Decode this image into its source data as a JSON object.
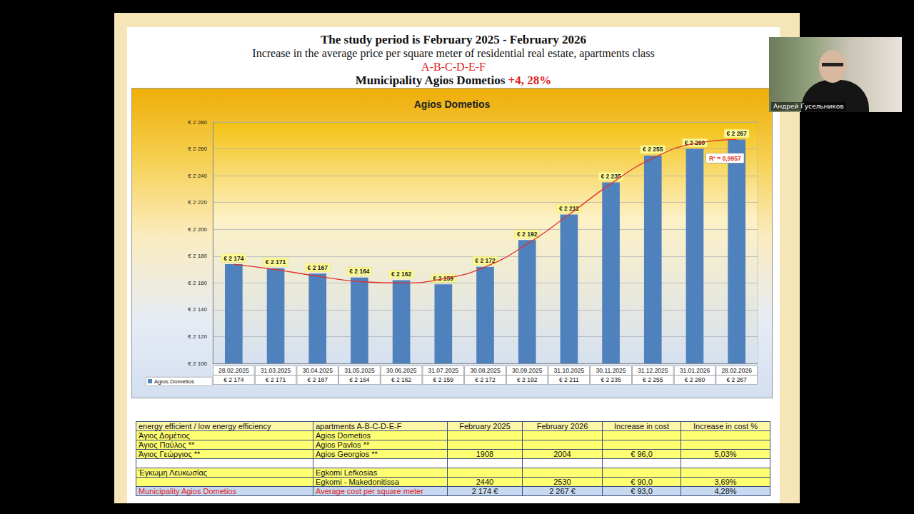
{
  "header": {
    "line1": "The study period is February 2025 - February 2026",
    "line2": "Increase in the average price per square meter of residential real estate, apartments class",
    "line3": "A-B-C-D-E-F",
    "municipality": "Municipality Agios Dometios",
    "change": "+4, 28%"
  },
  "chart_data": {
    "type": "bar",
    "title": "Agios Dometios",
    "categories": [
      "28.02.2025",
      "31.03.2025",
      "30.04.2025",
      "31.05.2025",
      "30.06.2025",
      "31.07.2025",
      "30.08.2025",
      "30.09.2025",
      "31.10.2025",
      "30.11.2025",
      "31.12.2025",
      "31.01.2026",
      "28.02.2026"
    ],
    "series": [
      {
        "name": "Agios Dometios",
        "type": "bar",
        "color": "#4f81bd",
        "values": [
          2174,
          2171,
          2167,
          2164,
          2162,
          2159,
          2172,
          2192,
          2211,
          2235,
          2255,
          2260,
          2267
        ],
        "value_labels": [
          "€ 2 174",
          "€ 2 171",
          "€ 2 167",
          "€ 2 164",
          "€ 2 162",
          "€ 2 159",
          "€ 2 172",
          "€ 2 192",
          "€ 2 211",
          "€ 2 235",
          "€ 2 255",
          "€ 2 260",
          "€ 2 267"
        ]
      },
      {
        "type": "line",
        "color": "#e0302a",
        "line_style": "solid",
        "marker": "none",
        "values": [
          2174,
          2170,
          2165,
          2161,
          2160,
          2163,
          2172,
          2189,
          2211,
          2234,
          2253,
          2264,
          2267
        ]
      }
    ],
    "annotations": [
      {
        "text": "R² = 0,9957"
      }
    ],
    "ylim": [
      2100,
      2280
    ],
    "yticks": [
      {
        "value": 2100,
        "label": "€ 2 100"
      },
      {
        "value": 2120,
        "label": "€ 2 120"
      },
      {
        "value": 2140,
        "label": "€ 2 140"
      },
      {
        "value": 2160,
        "label": "€ 2 160"
      },
      {
        "value": 2180,
        "label": "€ 2 180"
      },
      {
        "value": 2200,
        "label": "€ 2 200"
      },
      {
        "value": 2220,
        "label": "€ 2 220"
      },
      {
        "value": 2240,
        "label": "€ 2 240"
      },
      {
        "value": 2260,
        "label": "€ 2 260"
      },
      {
        "value": 2280,
        "label": "€ 2 280"
      }
    ],
    "grid": true,
    "data_labels": true,
    "legend": "bottom left"
  },
  "table": {
    "header": [
      "energy efficient / low energy efficiency",
      "apartments A-B-C-D-E-F",
      "February 2025",
      "February 2026",
      "Increase in cost",
      "Increase in cost  %"
    ],
    "rows": [
      [
        "Άγιος Δομέτιος",
        "Agios Dometios",
        null,
        null,
        null,
        null
      ],
      [
        "Άγιος Παύλος **",
        "Agios Pavlos **",
        null,
        null,
        null,
        null
      ],
      [
        "Άγιος Γεώργιος **",
        "Agios Georgios **",
        "1908",
        "2004",
        "€ 96,0",
        "5,03%"
      ],
      [
        null,
        null,
        null,
        null,
        null,
        null
      ],
      [
        "Έγκωμη Λευκωσίας",
        "Egkomi Lefkosias",
        null,
        null,
        null,
        null
      ],
      [
        null,
        "Egkomi - Makedonitissa",
        "2440",
        "2530",
        "€ 90,0",
        "3,69%"
      ],
      [
        "Municipality  Agios Dometios",
        "Average cost per square meter",
        "2 174 €",
        "2 267 €",
        "€ 93,0",
        "4,28%"
      ]
    ]
  },
  "video_tile": {
    "name": "Андрей Гусельников"
  }
}
